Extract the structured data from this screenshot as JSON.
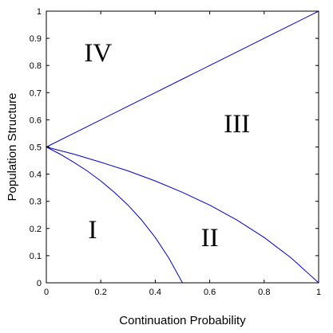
{
  "chart_data": {
    "type": "line",
    "xlabel": "Continuation Probability",
    "ylabel": "Population Structure",
    "xlim": [
      0,
      1
    ],
    "ylim": [
      0,
      1
    ],
    "grid": false,
    "line_color": "#0000cc",
    "x_ticks": [
      "0",
      "0.2",
      "0.4",
      "0.6",
      "0.8",
      "1"
    ],
    "y_ticks": [
      "0",
      "0.1",
      "0.2",
      "0.3",
      "0.4",
      "0.5",
      "0.6",
      "0.7",
      "0.8",
      "0.9",
      "1"
    ],
    "series": [
      {
        "x": [
          0,
          0.1,
          0.2,
          0.3,
          0.4,
          0.5,
          0.6,
          0.7,
          0.8,
          0.9,
          1
        ],
        "y": [
          0.5,
          0.55,
          0.6,
          0.65,
          0.7,
          0.75,
          0.8,
          0.85,
          0.9,
          0.95,
          1
        ]
      },
      {
        "x": [
          0,
          0.1,
          0.2,
          0.3,
          0.4,
          0.5,
          0.6,
          0.7,
          0.8,
          0.9,
          1
        ],
        "y": [
          0.5,
          0.474,
          0.444,
          0.412,
          0.375,
          0.333,
          0.286,
          0.231,
          0.167,
          0.091,
          0
        ]
      },
      {
        "x": [
          0,
          0.05,
          0.1,
          0.15,
          0.2,
          0.25,
          0.3,
          0.35,
          0.4,
          0.45,
          0.5
        ],
        "y": [
          0.5,
          0.474,
          0.444,
          0.412,
          0.375,
          0.333,
          0.286,
          0.231,
          0.167,
          0.091,
          0
        ]
      }
    ],
    "annotations": [
      {
        "text": "IV",
        "x": 0.19,
        "y": 0.85
      },
      {
        "text": "III",
        "x": 0.7,
        "y": 0.59
      },
      {
        "text": "I",
        "x": 0.17,
        "y": 0.2
      },
      {
        "text": "II",
        "x": 0.6,
        "y": 0.17
      }
    ]
  }
}
